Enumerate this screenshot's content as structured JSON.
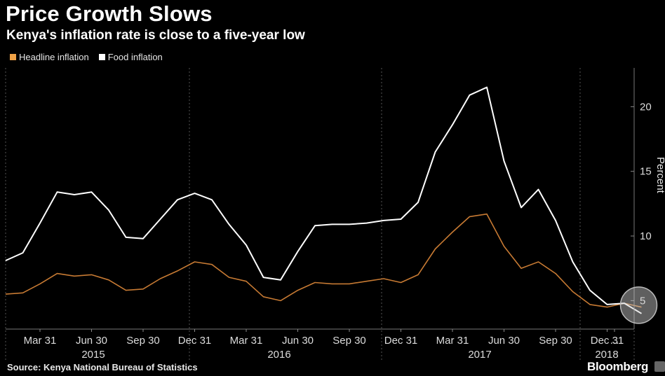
{
  "title": "Price Growth Slows",
  "subtitle": "Kenya's inflation rate is close to a five-year low",
  "source": "Source: Kenya National Bureau of Statistics",
  "brand": "Bloomberg",
  "chart_data": {
    "type": "line",
    "ylabel": "Percent",
    "ylim": [
      2.8,
      23
    ],
    "yticks": [
      5,
      10,
      15,
      20
    ],
    "grid": "vertical dotted separators",
    "legend_position": "top-left",
    "x_tick_labels": [
      "Mar 31",
      "Jun 30",
      "Sep 30",
      "Dec 31",
      "Mar 31",
      "Jun 30",
      "Sep 30",
      "Dec 31",
      "Mar 31",
      "Jun 30",
      "Sep 30",
      "Dec 31",
      "..."
    ],
    "year_labels": [
      "2015",
      "2016",
      "2017",
      "2018"
    ],
    "x": [
      "2015-01",
      "2015-02",
      "2015-03",
      "2015-04",
      "2015-05",
      "2015-06",
      "2015-07",
      "2015-08",
      "2015-09",
      "2015-10",
      "2015-11",
      "2015-12",
      "2016-01",
      "2016-02",
      "2016-03",
      "2016-04",
      "2016-05",
      "2016-06",
      "2016-07",
      "2016-08",
      "2016-09",
      "2016-10",
      "2016-11",
      "2016-12",
      "2017-01",
      "2017-02",
      "2017-03",
      "2017-04",
      "2017-05",
      "2017-06",
      "2017-07",
      "2017-08",
      "2017-09",
      "2017-10",
      "2017-11",
      "2017-12",
      "2018-01",
      "2018-02"
    ],
    "series": [
      {
        "name": "Headline inflation",
        "color": "#f0a146",
        "line_color": "#c77a33",
        "values": [
          5.5,
          5.6,
          6.3,
          7.1,
          6.9,
          7.0,
          6.6,
          5.8,
          5.9,
          6.7,
          7.3,
          8.0,
          7.8,
          6.8,
          6.5,
          5.3,
          5.0,
          5.8,
          6.4,
          6.3,
          6.3,
          6.5,
          6.7,
          6.4,
          7.0,
          9.0,
          10.3,
          11.5,
          11.7,
          9.2,
          7.5,
          8.0,
          7.1,
          5.7,
          4.7,
          4.5,
          4.8,
          4.5
        ]
      },
      {
        "name": "Food inflation",
        "color": "#ffffff",
        "line_color": "#ffffff",
        "values": [
          8.1,
          8.7,
          11.0,
          13.4,
          13.2,
          13.4,
          12.0,
          9.9,
          9.8,
          11.3,
          12.8,
          13.3,
          12.8,
          10.9,
          9.3,
          6.8,
          6.6,
          8.8,
          10.8,
          10.9,
          10.9,
          11.0,
          11.2,
          11.3,
          12.6,
          16.5,
          18.6,
          20.9,
          21.5,
          15.8,
          12.2,
          13.6,
          11.2,
          8.0,
          5.8,
          4.7,
          4.8,
          4.0
        ]
      }
    ]
  }
}
